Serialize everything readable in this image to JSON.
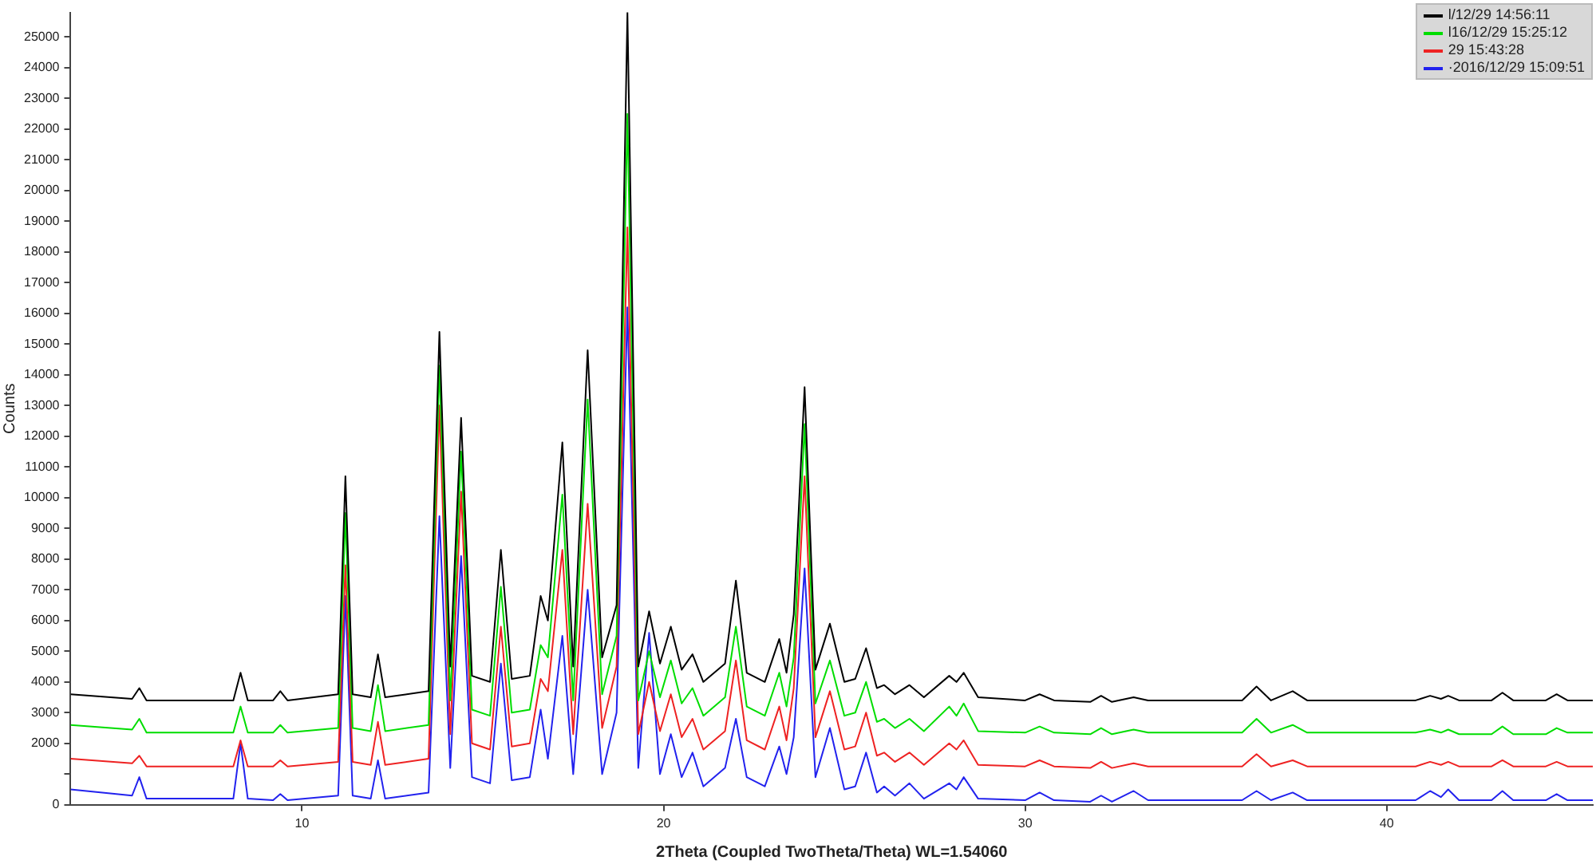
{
  "chart_data": {
    "type": "line",
    "xlabel": "2Theta (Coupled TwoTheta/Theta) WL=1.54060",
    "ylabel": "Counts",
    "x": [
      3.6,
      5.3,
      5.5,
      5.7,
      8.1,
      8.3,
      8.5,
      9.2,
      9.4,
      9.6,
      11.0,
      11.2,
      11.4,
      11.9,
      12.1,
      12.3,
      13.5,
      13.8,
      14.1,
      14.4,
      14.7,
      15.2,
      15.5,
      15.8,
      16.3,
      16.6,
      16.8,
      17.2,
      17.5,
      17.9,
      18.3,
      18.7,
      19.0,
      19.3,
      19.6,
      19.9,
      20.2,
      20.5,
      20.8,
      21.1,
      21.7,
      22.0,
      22.3,
      22.8,
      23.2,
      23.4,
      23.6,
      23.9,
      24.2,
      24.6,
      25.0,
      25.3,
      25.6,
      25.9,
      26.1,
      26.4,
      26.8,
      27.2,
      27.9,
      28.1,
      28.3,
      28.7,
      30.0,
      30.4,
      30.8,
      31.8,
      32.1,
      32.4,
      33.0,
      33.4,
      36.0,
      36.4,
      36.8,
      37.4,
      37.8,
      40.8,
      41.2,
      41.5,
      41.7,
      42.0,
      42.9,
      43.2,
      43.5,
      44.4,
      44.7,
      45.0,
      45.7
    ],
    "series": [
      {
        "name": "l/12/29 14:56:11",
        "color": "#000000",
        "values": [
          3600,
          3450,
          3800,
          3400,
          3400,
          4300,
          3400,
          3400,
          3700,
          3400,
          3600,
          10700,
          3600,
          3500,
          4900,
          3500,
          3700,
          15400,
          4500,
          12600,
          4200,
          4000,
          8300,
          4100,
          4200,
          6800,
          6000,
          11800,
          4500,
          14800,
          4800,
          6500,
          25800,
          4500,
          6300,
          4600,
          5800,
          4400,
          4900,
          4000,
          4600,
          7300,
          4300,
          4000,
          5400,
          4300,
          6200,
          13600,
          4400,
          5900,
          4000,
          4100,
          5100,
          3800,
          3900,
          3600,
          3900,
          3500,
          4200,
          4000,
          4300,
          3500,
          3400,
          3600,
          3400,
          3350,
          3550,
          3350,
          3500,
          3400,
          3400,
          3850,
          3400,
          3700,
          3400,
          3400,
          3550,
          3450,
          3550,
          3400,
          3400,
          3650,
          3400,
          3400,
          3600,
          3400,
          3400
        ]
      },
      {
        "name": "l16/12/29 15:25:12",
        "color": "#00dd00",
        "values": [
          2600,
          2450,
          2800,
          2350,
          2350,
          3200,
          2350,
          2350,
          2600,
          2350,
          2500,
          9500,
          2500,
          2400,
          3900,
          2400,
          2600,
          14300,
          3400,
          11500,
          3100,
          2900,
          7100,
          3000,
          3100,
          5200,
          4800,
          10100,
          3400,
          13200,
          3600,
          5500,
          22500,
          3400,
          5000,
          3500,
          4700,
          3300,
          3800,
          2900,
          3500,
          5800,
          3200,
          2900,
          4300,
          3200,
          4800,
          12400,
          3300,
          4700,
          2900,
          3000,
          4000,
          2700,
          2800,
          2500,
          2800,
          2400,
          3200,
          2900,
          3300,
          2400,
          2350,
          2550,
          2350,
          2300,
          2500,
          2300,
          2450,
          2350,
          2350,
          2800,
          2350,
          2600,
          2350,
          2350,
          2450,
          2350,
          2450,
          2300,
          2300,
          2550,
          2300,
          2300,
          2500,
          2350,
          2350
        ]
      },
      {
        "name": "29 15:43:28",
        "color": "#ee2222",
        "values": [
          1500,
          1350,
          1600,
          1250,
          1250,
          2100,
          1250,
          1250,
          1450,
          1250,
          1400,
          7800,
          1400,
          1300,
          2700,
          1300,
          1500,
          13000,
          2300,
          10200,
          2000,
          1800,
          5800,
          1900,
          2000,
          4100,
          3700,
          8300,
          2300,
          9800,
          2500,
          4500,
          18800,
          2300,
          4000,
          2400,
          3600,
          2200,
          2800,
          1800,
          2400,
          4700,
          2100,
          1800,
          3200,
          2100,
          3800,
          10700,
          2200,
          3700,
          1800,
          1900,
          3000,
          1600,
          1700,
          1400,
          1700,
          1300,
          2000,
          1800,
          2100,
          1300,
          1250,
          1450,
          1250,
          1200,
          1400,
          1200,
          1350,
          1250,
          1250,
          1650,
          1250,
          1450,
          1250,
          1250,
          1400,
          1300,
          1400,
          1250,
          1250,
          1450,
          1250,
          1250,
          1400,
          1250,
          1250
        ]
      },
      {
        "name": "·2016/12/29 15:09:51",
        "color": "#2222ee",
        "values": [
          500,
          300,
          900,
          200,
          200,
          2000,
          200,
          150,
          350,
          150,
          300,
          6800,
          300,
          200,
          1450,
          200,
          400,
          9400,
          1200,
          8100,
          900,
          700,
          4600,
          800,
          900,
          3100,
          1500,
          5500,
          1000,
          7000,
          1000,
          3000,
          16200,
          1200,
          5600,
          1000,
          2300,
          900,
          1700,
          600,
          1200,
          2800,
          900,
          600,
          1900,
          1000,
          2200,
          7700,
          900,
          2500,
          500,
          600,
          1700,
          400,
          600,
          300,
          700,
          200,
          700,
          500,
          900,
          200,
          150,
          400,
          150,
          100,
          300,
          100,
          450,
          150,
          150,
          450,
          150,
          400,
          150,
          150,
          450,
          250,
          500,
          150,
          150,
          450,
          150,
          150,
          350,
          150,
          150
        ]
      }
    ],
    "xlim": [
      3.6,
      45.7
    ],
    "xticks": [
      10,
      20,
      30,
      40
    ],
    "ylim": [
      0,
      25800
    ],
    "yticks": [
      0,
      {
        "value": 1000,
        "label": null
      },
      2000,
      3000,
      4000,
      5000,
      6000,
      7000,
      8000,
      9000,
      10000,
      11000,
      12000,
      13000,
      14000,
      15000,
      16000,
      17000,
      18000,
      19000,
      20000,
      21000,
      22000,
      23000,
      24000,
      25000
    ],
    "grid": false,
    "legend": "top right",
    "marker": "none",
    "line_style": "solid"
  }
}
